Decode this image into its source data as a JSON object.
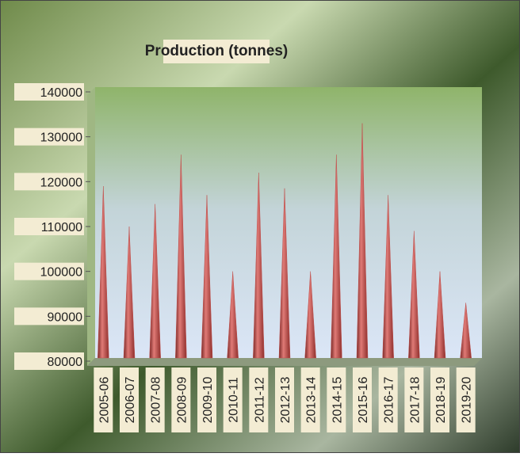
{
  "chart_data": {
    "type": "bar",
    "title": "Production (tonnes)",
    "categories": [
      "2005-06",
      "2006-07",
      "2007-08",
      "2008-09",
      "2009-10",
      "2010-11",
      "2011-12",
      "2012-13",
      "2013-14",
      "2014-15",
      "2015-16",
      "2016-17",
      "2017-18",
      "2018-19",
      "2019-20"
    ],
    "values": [
      119000,
      110000,
      115000,
      126000,
      117000,
      100000,
      122000,
      118500,
      100000,
      126000,
      133000,
      117000,
      109000,
      100000,
      93000
    ],
    "color": "#c0504d",
    "ylim": [
      80000,
      140000
    ],
    "yticks": [
      80000,
      90000,
      100000,
      110000,
      120000,
      130000,
      140000
    ]
  }
}
